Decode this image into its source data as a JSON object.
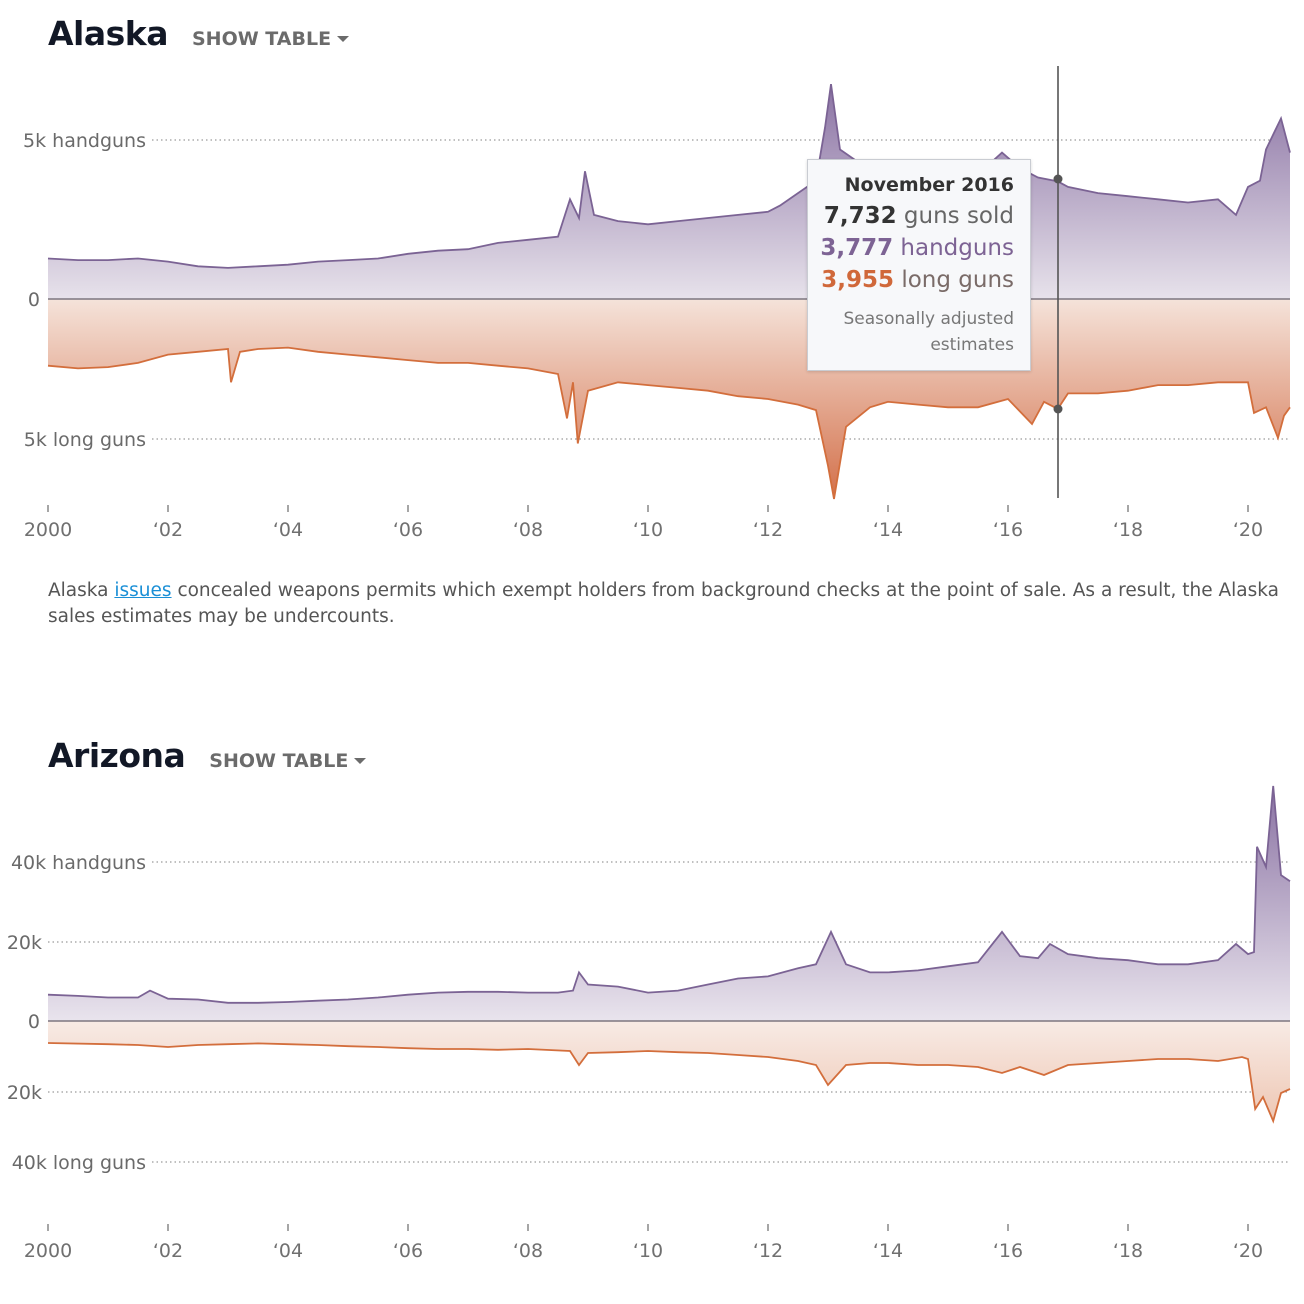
{
  "colors": {
    "handgun_line": "#7b6394",
    "handgun_fill_top": "#8d76a6",
    "handgun_fill_bottom": "#e6e0ea",
    "longgun_line": "#d36e3c",
    "longgun_fill_top": "#f4e0d6",
    "longgun_fill_bottom": "#d5704a",
    "link": "#1a8fd6"
  },
  "charts": [
    {
      "state": "Alaska",
      "show_table_label": "SHOW TABLE",
      "y_labels": {
        "top": "5k handguns",
        "zero": "0",
        "bottom": "5k long guns"
      },
      "x_tick_labels": [
        "2000",
        "‘02",
        "‘04",
        "‘06",
        "‘08",
        "‘10",
        "‘12",
        "‘14",
        "‘16",
        "‘18",
        "‘20"
      ],
      "note": {
        "before": "Alaska ",
        "link": "issues",
        "after": " concealed weapons permits which exempt holders from background checks at the point of sale. As a result, the Alaska sales estimates may be undercounts."
      },
      "tooltip": {
        "date": "November 2016",
        "total_value": "7,732",
        "total_label": "guns sold",
        "handgun_value": "3,777",
        "handgun_label": "handguns",
        "longgun_value": "3,955",
        "longgun_label": "long guns",
        "footnote_1": "Seasonally adjusted",
        "footnote_2": "estimates"
      }
    },
    {
      "state": "Arizona",
      "show_table_label": "SHOW TABLE",
      "y_labels": {
        "top": "40k handguns",
        "mid_top": "20k",
        "zero": "0",
        "mid_bottom": "20k",
        "bottom": "40k long guns"
      },
      "x_tick_labels": [
        "2000",
        "‘02",
        "‘04",
        "‘06",
        "‘08",
        "‘10",
        "‘12",
        "‘14",
        "‘16",
        "‘18",
        "‘20"
      ]
    }
  ],
  "chart_data": [
    {
      "type": "area",
      "title": "Alaska",
      "x_range": [
        2000,
        2020.7
      ],
      "y_range_handguns": [
        0,
        7000
      ],
      "y_range_longguns": [
        0,
        7200
      ],
      "series": [
        {
          "name": "handguns",
          "points": [
            [
              2000.0,
              1300
            ],
            [
              2000.5,
              1250
            ],
            [
              2001.0,
              1250
            ],
            [
              2001.5,
              1300
            ],
            [
              2002.0,
              1200
            ],
            [
              2002.5,
              1050
            ],
            [
              2003.0,
              1000
            ],
            [
              2003.5,
              1050
            ],
            [
              2004.0,
              1100
            ],
            [
              2004.5,
              1200
            ],
            [
              2005.0,
              1250
            ],
            [
              2005.5,
              1300
            ],
            [
              2006.0,
              1450
            ],
            [
              2006.5,
              1550
            ],
            [
              2007.0,
              1600
            ],
            [
              2007.5,
              1800
            ],
            [
              2008.0,
              1900
            ],
            [
              2008.5,
              2000
            ],
            [
              2008.7,
              3200
            ],
            [
              2008.85,
              2600
            ],
            [
              2008.95,
              4100
            ],
            [
              2009.1,
              2700
            ],
            [
              2009.5,
              2500
            ],
            [
              2010.0,
              2400
            ],
            [
              2010.5,
              2500
            ],
            [
              2011.0,
              2600
            ],
            [
              2011.5,
              2700
            ],
            [
              2012.0,
              2800
            ],
            [
              2012.2,
              3000
            ],
            [
              2012.5,
              3400
            ],
            [
              2012.8,
              3800
            ],
            [
              2012.95,
              5500
            ],
            [
              2013.05,
              6900
            ],
            [
              2013.2,
              4800
            ],
            [
              2013.5,
              4400
            ],
            [
              2014.0,
              4200
            ],
            [
              2014.5,
              4000
            ],
            [
              2015.0,
              3900
            ],
            [
              2015.5,
              4000
            ],
            [
              2015.9,
              4700
            ],
            [
              2016.2,
              4200
            ],
            [
              2016.5,
              3900
            ],
            [
              2016.83,
              3777
            ],
            [
              2017.0,
              3600
            ],
            [
              2017.5,
              3400
            ],
            [
              2018.0,
              3300
            ],
            [
              2018.5,
              3200
            ],
            [
              2019.0,
              3100
            ],
            [
              2019.5,
              3200
            ],
            [
              2019.8,
              2700
            ],
            [
              2020.0,
              3600
            ],
            [
              2020.2,
              3800
            ],
            [
              2020.3,
              4800
            ],
            [
              2020.45,
              5400
            ],
            [
              2020.55,
              5800
            ],
            [
              2020.7,
              4700
            ]
          ]
        },
        {
          "name": "long guns",
          "points": [
            [
              2000.0,
              2400
            ],
            [
              2000.5,
              2500
            ],
            [
              2001.0,
              2450
            ],
            [
              2001.5,
              2300
            ],
            [
              2002.0,
              2000
            ],
            [
              2002.5,
              1900
            ],
            [
              2003.0,
              1800
            ],
            [
              2003.05,
              3000
            ],
            [
              2003.2,
              1900
            ],
            [
              2003.5,
              1800
            ],
            [
              2004.0,
              1750
            ],
            [
              2004.5,
              1900
            ],
            [
              2005.0,
              2000
            ],
            [
              2005.5,
              2100
            ],
            [
              2006.0,
              2200
            ],
            [
              2006.5,
              2300
            ],
            [
              2007.0,
              2300
            ],
            [
              2007.5,
              2400
            ],
            [
              2008.0,
              2500
            ],
            [
              2008.5,
              2700
            ],
            [
              2008.65,
              4300
            ],
            [
              2008.75,
              3000
            ],
            [
              2008.83,
              5200
            ],
            [
              2009.0,
              3300
            ],
            [
              2009.5,
              3000
            ],
            [
              2010.0,
              3100
            ],
            [
              2010.5,
              3200
            ],
            [
              2011.0,
              3300
            ],
            [
              2011.5,
              3500
            ],
            [
              2012.0,
              3600
            ],
            [
              2012.5,
              3800
            ],
            [
              2012.8,
              4000
            ],
            [
              2013.0,
              6000
            ],
            [
              2013.1,
              7200
            ],
            [
              2013.3,
              4600
            ],
            [
              2013.7,
              3900
            ],
            [
              2014.0,
              3700
            ],
            [
              2014.5,
              3800
            ],
            [
              2015.0,
              3900
            ],
            [
              2015.5,
              3900
            ],
            [
              2016.0,
              3600
            ],
            [
              2016.4,
              4500
            ],
            [
              2016.6,
              3700
            ],
            [
              2016.83,
              3955
            ],
            [
              2017.0,
              3400
            ],
            [
              2017.5,
              3400
            ],
            [
              2018.0,
              3300
            ],
            [
              2018.5,
              3100
            ],
            [
              2019.0,
              3100
            ],
            [
              2019.5,
              3000
            ],
            [
              2020.0,
              3000
            ],
            [
              2020.1,
              4100
            ],
            [
              2020.3,
              3900
            ],
            [
              2020.5,
              5000
            ],
            [
              2020.6,
              4200
            ],
            [
              2020.7,
              3900
            ]
          ]
        }
      ]
    },
    {
      "type": "area",
      "title": "Arizona",
      "x_range": [
        2000,
        2020.7
      ],
      "y_range_handguns": [
        0,
        58000
      ],
      "y_range_longguns": [
        0,
        50000
      ],
      "series": [
        {
          "name": "handguns",
          "points": [
            [
              2000.0,
              6500
            ],
            [
              2000.5,
              6200
            ],
            [
              2001.0,
              5800
            ],
            [
              2001.5,
              5800
            ],
            [
              2001.7,
              7500
            ],
            [
              2002.0,
              5500
            ],
            [
              2002.5,
              5300
            ],
            [
              2003.0,
              4500
            ],
            [
              2003.5,
              4500
            ],
            [
              2004.0,
              4700
            ],
            [
              2004.5,
              5000
            ],
            [
              2005.0,
              5300
            ],
            [
              2005.5,
              5800
            ],
            [
              2006.0,
              6500
            ],
            [
              2006.5,
              7000
            ],
            [
              2007.0,
              7200
            ],
            [
              2007.5,
              7200
            ],
            [
              2008.0,
              7000
            ],
            [
              2008.5,
              7000
            ],
            [
              2008.75,
              7500
            ],
            [
              2008.85,
              12000
            ],
            [
              2009.0,
              9000
            ],
            [
              2009.5,
              8500
            ],
            [
              2010.0,
              7000
            ],
            [
              2010.5,
              7500
            ],
            [
              2011.0,
              9000
            ],
            [
              2011.5,
              10500
            ],
            [
              2012.0,
              11000
            ],
            [
              2012.5,
              13000
            ],
            [
              2012.8,
              14000
            ],
            [
              2013.05,
              22000
            ],
            [
              2013.3,
              14000
            ],
            [
              2013.7,
              12000
            ],
            [
              2014.0,
              12000
            ],
            [
              2014.5,
              12500
            ],
            [
              2015.0,
              13500
            ],
            [
              2015.5,
              14500
            ],
            [
              2015.9,
              22000
            ],
            [
              2016.2,
              16000
            ],
            [
              2016.5,
              15500
            ],
            [
              2016.7,
              19000
            ],
            [
              2017.0,
              16500
            ],
            [
              2017.5,
              15500
            ],
            [
              2018.0,
              15000
            ],
            [
              2018.5,
              14000
            ],
            [
              2019.0,
              14000
            ],
            [
              2019.5,
              15000
            ],
            [
              2019.8,
              19000
            ],
            [
              2020.0,
              16500
            ],
            [
              2020.1,
              17000
            ],
            [
              2020.15,
              43000
            ],
            [
              2020.3,
              38000
            ],
            [
              2020.42,
              58000
            ],
            [
              2020.55,
              36000
            ],
            [
              2020.7,
              34500
            ]
          ]
        },
        {
          "name": "long guns",
          "points": [
            [
              2000.0,
              5500
            ],
            [
              2001.0,
              5800
            ],
            [
              2001.5,
              6000
            ],
            [
              2002.0,
              6500
            ],
            [
              2002.5,
              6000
            ],
            [
              2003.0,
              5800
            ],
            [
              2003.5,
              5600
            ],
            [
              2004.0,
              5800
            ],
            [
              2004.5,
              6000
            ],
            [
              2005.0,
              6300
            ],
            [
              2005.5,
              6500
            ],
            [
              2006.0,
              6800
            ],
            [
              2006.5,
              7000
            ],
            [
              2007.0,
              7000
            ],
            [
              2007.5,
              7200
            ],
            [
              2008.0,
              7000
            ],
            [
              2008.7,
              7500
            ],
            [
              2008.85,
              11000
            ],
            [
              2009.0,
              8000
            ],
            [
              2009.5,
              7800
            ],
            [
              2010.0,
              7500
            ],
            [
              2010.5,
              7800
            ],
            [
              2011.0,
              8000
            ],
            [
              2011.5,
              8500
            ],
            [
              2012.0,
              9000
            ],
            [
              2012.5,
              10000
            ],
            [
              2012.8,
              11000
            ],
            [
              2013.0,
              16000
            ],
            [
              2013.3,
              11000
            ],
            [
              2013.7,
              10500
            ],
            [
              2014.0,
              10500
            ],
            [
              2014.5,
              11000
            ],
            [
              2015.0,
              11000
            ],
            [
              2015.5,
              11500
            ],
            [
              2015.9,
              13000
            ],
            [
              2016.2,
              11500
            ],
            [
              2016.6,
              13500
            ],
            [
              2017.0,
              11000
            ],
            [
              2017.5,
              10500
            ],
            [
              2018.0,
              10000
            ],
            [
              2018.5,
              9500
            ],
            [
              2019.0,
              9500
            ],
            [
              2019.5,
              10000
            ],
            [
              2019.9,
              9000
            ],
            [
              2020.0,
              9500
            ],
            [
              2020.12,
              22000
            ],
            [
              2020.25,
              19000
            ],
            [
              2020.42,
              25000
            ],
            [
              2020.55,
              18000
            ],
            [
              2020.7,
              17000
            ]
          ]
        }
      ]
    }
  ]
}
